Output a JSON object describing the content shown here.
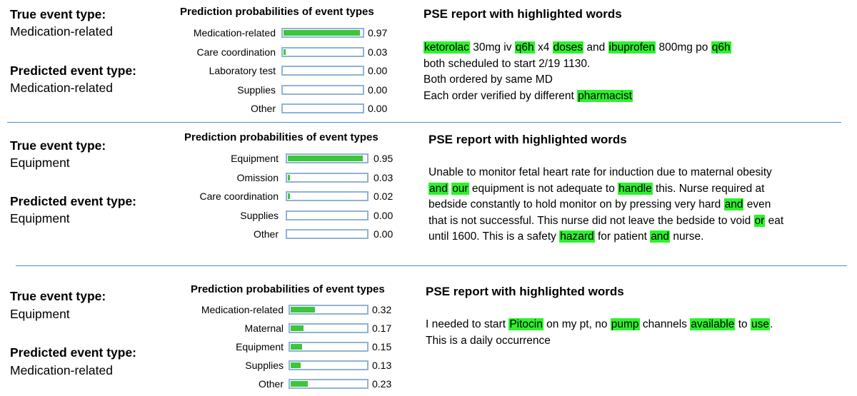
{
  "panels": [
    {
      "true_label": "True event type:",
      "true_value": "Medication-related",
      "pred_label": "Predicted event type:",
      "pred_value": "Medication-related",
      "chart_title": "Prediction probabilities of event types",
      "report_title": "PSE report with highlighted words",
      "report_lines": [
        [
          {
            "t": "ketorolac",
            "h": true
          },
          {
            "t": " 30mg iv "
          },
          {
            "t": "q6h",
            "h": true
          },
          {
            "t": " x4 "
          },
          {
            "t": "doses",
            "h": true
          },
          {
            "t": " and "
          },
          {
            "t": "ibuprofen",
            "h": true
          },
          {
            "t": " 800mg po "
          },
          {
            "t": "q6h",
            "h": true
          },
          {
            "t": " both scheduled to start 2/19 1130."
          }
        ],
        [
          {
            "t": "Both ordered by same MD"
          }
        ],
        [
          {
            "t": "Each order verified by different "
          },
          {
            "t": "pharmacist",
            "h": true
          }
        ]
      ]
    },
    {
      "true_label": "True event type:",
      "true_value": "Equipment",
      "pred_label": "Predicted event type:",
      "pred_value": "Equipment",
      "chart_title": "Prediction probabilities of event types",
      "report_title": "PSE report with highlighted words",
      "report_lines": [
        [
          {
            "t": "Unable to monitor fetal heart rate for induction due to maternal obesity "
          },
          {
            "t": "and",
            "h": true
          },
          {
            "t": " "
          },
          {
            "t": "our",
            "h": true
          },
          {
            "t": " equipment is not adequate to "
          },
          {
            "t": "handle",
            "h": true
          },
          {
            "t": " this. Nurse required at bedside constantly to hold monitor on by pressing very hard "
          },
          {
            "t": "and",
            "h": true
          },
          {
            "t": " even that is not successful. This nurse did not leave the bedside to void "
          },
          {
            "t": "or",
            "h": true
          },
          {
            "t": " eat until 1600. This is a safety "
          },
          {
            "t": "hazard",
            "h": true
          },
          {
            "t": " for patient "
          },
          {
            "t": "and",
            "h": true
          },
          {
            "t": " nurse."
          }
        ]
      ]
    },
    {
      "true_label": "True event type:",
      "true_value": "Equipment",
      "pred_label": "Predicted event type:",
      "pred_value": "Medication-related",
      "chart_title": "Prediction probabilities of event types",
      "report_title": "PSE report with highlighted words",
      "report_lines": [
        [
          {
            "t": "I needed to start "
          },
          {
            "t": "Pitocin",
            "h": true
          },
          {
            "t": " on my pt, no "
          },
          {
            "t": "pump",
            "h": true
          },
          {
            "t": " channels "
          },
          {
            "t": "available",
            "h": true
          },
          {
            "t": " to "
          },
          {
            "t": "use",
            "h": true
          },
          {
            "t": ". This is a daily occurrence"
          }
        ]
      ]
    }
  ],
  "chart_data": [
    {
      "type": "bar",
      "title": "Prediction probabilities of event types",
      "categories": [
        "Medication-related",
        "Care coordination",
        "Laboratory test",
        "Supplies",
        "Other"
      ],
      "values": [
        0.97,
        0.03,
        0.0,
        0.0,
        0.0
      ],
      "value_labels": [
        "0.97",
        "0.03",
        "0.00",
        "0.00",
        "0.00"
      ],
      "xlim": [
        0,
        1
      ],
      "orientation": "horizontal",
      "bar_color": "#3cc63a"
    },
    {
      "type": "bar",
      "title": "Prediction probabilities of event types",
      "categories": [
        "Equipment",
        "Omission",
        "Care coordination",
        "Supplies",
        "Other"
      ],
      "values": [
        0.95,
        0.03,
        0.02,
        0.0,
        0.0
      ],
      "value_labels": [
        "0.95",
        "0.03",
        "0.02",
        "0.00",
        "0.00"
      ],
      "xlim": [
        0,
        1
      ],
      "orientation": "horizontal",
      "bar_color": "#3cc63a"
    },
    {
      "type": "bar",
      "title": "Prediction probabilities of event types",
      "categories": [
        "Medication-related",
        "Maternal",
        "Equipment",
        "Supplies",
        "Other"
      ],
      "values": [
        0.32,
        0.17,
        0.15,
        0.13,
        0.23
      ],
      "value_labels": [
        "0.32",
        "0.17",
        "0.15",
        "0.13",
        "0.23"
      ],
      "xlim": [
        0,
        1
      ],
      "orientation": "horizontal",
      "bar_color": "#3cc63a"
    }
  ]
}
